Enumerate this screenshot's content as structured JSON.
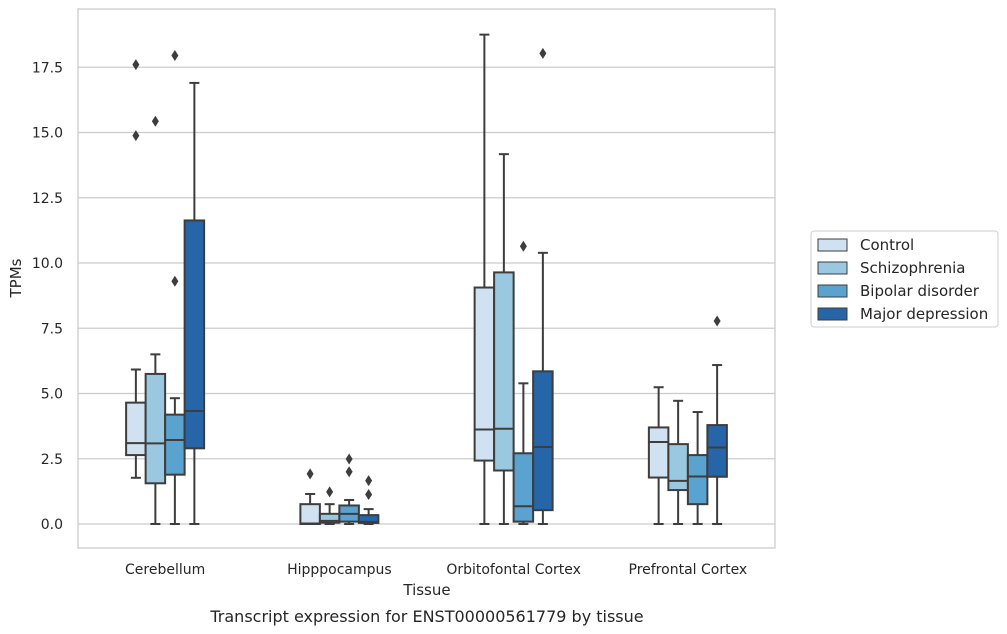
{
  "chart_data": {
    "type": "box",
    "xlabel": "Tissue",
    "ylabel": "TPMs",
    "caption": "Transcript expression for ENST00000561779 by tissue",
    "ylim": [
      -0.9,
      19.7
    ],
    "yticks": [
      0.0,
      2.5,
      5.0,
      7.5,
      10.0,
      12.5,
      15.0,
      17.5
    ],
    "ytick_labels": [
      "0.0",
      "2.5",
      "5.0",
      "7.5",
      "10.0",
      "12.5",
      "15.0",
      "17.5"
    ],
    "grid": "horizontal",
    "legend_position": "right",
    "categories": [
      "Cerebellum",
      "Hipppocampus",
      "Orbitofontal Cortex",
      "Prefrontal Cortex"
    ],
    "series": [
      {
        "name": "Control",
        "color": "#d0e1f2",
        "boxes": [
          {
            "whislo": 1.77,
            "q1": 2.64,
            "med": 3.1,
            "q3": 4.65,
            "whishi": 5.92,
            "fliers": [
              14.88,
              17.6
            ]
          },
          {
            "whislo": 0.0,
            "q1": 0.0,
            "med": 0.02,
            "q3": 0.76,
            "whishi": 1.15,
            "fliers": [
              1.92
            ]
          },
          {
            "whislo": 0.0,
            "q1": 2.43,
            "med": 3.62,
            "q3": 9.06,
            "whishi": 18.75,
            "fliers": []
          },
          {
            "whislo": 0.0,
            "q1": 1.78,
            "med": 3.14,
            "q3": 3.7,
            "whishi": 5.24,
            "fliers": []
          }
        ]
      },
      {
        "name": "Schizophrenia",
        "color": "#9ac8e0",
        "boxes": [
          {
            "whislo": 0.0,
            "q1": 1.56,
            "med": 3.09,
            "q3": 5.75,
            "whishi": 6.5,
            "fliers": [
              15.43
            ]
          },
          {
            "whislo": 0.0,
            "q1": 0.05,
            "med": 0.12,
            "q3": 0.39,
            "whishi": 0.76,
            "fliers": [
              1.23
            ]
          },
          {
            "whislo": 0.0,
            "q1": 2.05,
            "med": 3.65,
            "q3": 9.64,
            "whishi": 14.17,
            "fliers": []
          },
          {
            "whislo": 0.0,
            "q1": 1.3,
            "med": 1.65,
            "q3": 3.06,
            "whishi": 4.72,
            "fliers": []
          }
        ]
      },
      {
        "name": "Bipolar disorder",
        "color": "#5aa2cf",
        "boxes": [
          {
            "whislo": 0.0,
            "q1": 1.89,
            "med": 3.22,
            "q3": 4.19,
            "whishi": 4.82,
            "fliers": [
              9.3,
              17.95
            ]
          },
          {
            "whislo": 0.0,
            "q1": 0.09,
            "med": 0.39,
            "q3": 0.71,
            "whishi": 0.92,
            "fliers": [
              2.0,
              2.49
            ]
          },
          {
            "whislo": 0.0,
            "q1": 0.09,
            "med": 0.68,
            "q3": 2.71,
            "whishi": 5.39,
            "fliers": [
              10.64
            ]
          },
          {
            "whislo": 0.0,
            "q1": 0.76,
            "med": 1.82,
            "q3": 2.64,
            "whishi": 4.29,
            "fliers": []
          }
        ]
      },
      {
        "name": "Major depression",
        "color": "#2565a8",
        "boxes": [
          {
            "whislo": 0.0,
            "q1": 2.9,
            "med": 4.33,
            "q3": 11.63,
            "whishi": 16.9,
            "fliers": []
          },
          {
            "whislo": 0.0,
            "q1": 0.04,
            "med": 0.08,
            "q3": 0.34,
            "whishi": 0.57,
            "fliers": [
              1.13,
              1.66
            ]
          },
          {
            "whislo": 0.0,
            "q1": 0.53,
            "med": 2.95,
            "q3": 5.85,
            "whishi": 10.39,
            "fliers": [
              18.03
            ]
          },
          {
            "whislo": 0.0,
            "q1": 1.81,
            "med": 2.93,
            "q3": 3.79,
            "whishi": 6.09,
            "fliers": [
              7.78
            ]
          }
        ]
      }
    ]
  }
}
